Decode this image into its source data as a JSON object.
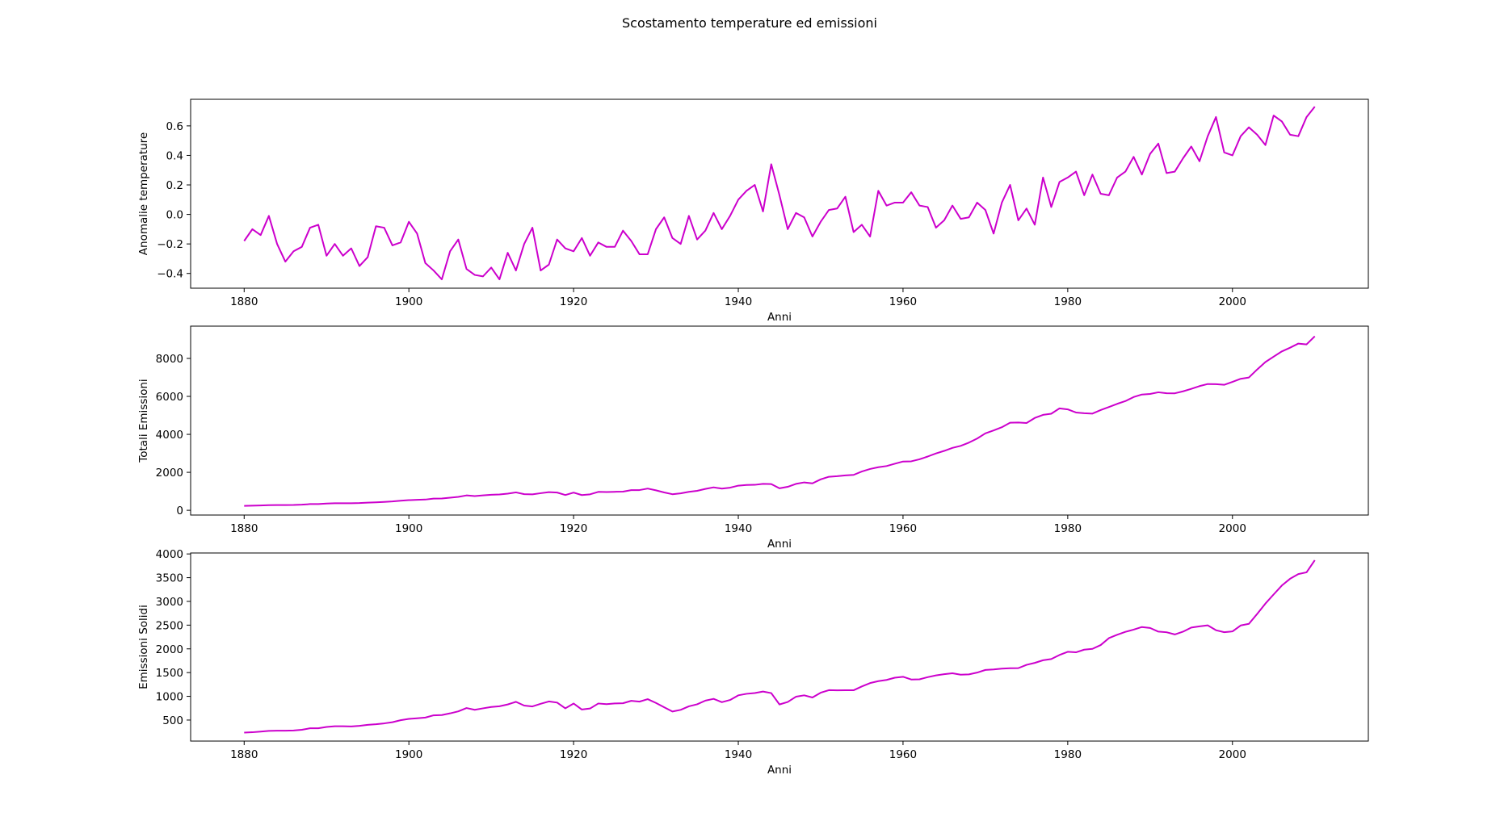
{
  "figure": {
    "title": "Scostamento temperature ed emissioni"
  },
  "style": {
    "line_color": "#cc00cc",
    "axes_color": "#000000",
    "background": "#ffffff"
  },
  "chart_data": [
    {
      "type": "line",
      "title": "",
      "xlabel": "Anni",
      "ylabel": "Anomalie temperature",
      "xlim": [
        1873.5,
        2016.5
      ],
      "ylim": [
        -0.5,
        0.78
      ],
      "xticks": [
        1880,
        1900,
        1920,
        1940,
        1960,
        1980,
        2000
      ],
      "yticks": [
        -0.4,
        -0.2,
        0.0,
        0.2,
        0.4,
        0.6
      ],
      "ytick_labels": [
        "−0.4",
        "−0.2",
        "0.0",
        "0.2",
        "0.4",
        "0.6"
      ],
      "grid": false,
      "series": [
        {
          "x_start": 1880,
          "x_step": 1,
          "values": [
            -0.18,
            -0.1,
            -0.14,
            -0.01,
            -0.2,
            -0.32,
            -0.25,
            -0.22,
            -0.09,
            -0.07,
            -0.28,
            -0.2,
            -0.28,
            -0.23,
            -0.35,
            -0.29,
            -0.08,
            -0.09,
            -0.21,
            -0.19,
            -0.05,
            -0.13,
            -0.33,
            -0.38,
            -0.44,
            -0.25,
            -0.17,
            -0.37,
            -0.41,
            -0.42,
            -0.36,
            -0.44,
            -0.26,
            -0.38,
            -0.2,
            -0.09,
            -0.38,
            -0.34,
            -0.17,
            -0.23,
            -0.25,
            -0.16,
            -0.28,
            -0.19,
            -0.22,
            -0.22,
            -0.11,
            -0.18,
            -0.27,
            -0.27,
            -0.1,
            -0.02,
            -0.16,
            -0.2,
            -0.01,
            -0.17,
            -0.11,
            0.01,
            -0.1,
            -0.01,
            0.1,
            0.16,
            0.2,
            0.02,
            0.34,
            0.13,
            -0.1,
            0.01,
            -0.02,
            -0.15,
            -0.05,
            0.03,
            0.04,
            0.12,
            -0.12,
            -0.07,
            -0.15,
            0.16,
            0.06,
            0.08,
            0.08,
            0.15,
            0.06,
            0.05,
            -0.09,
            -0.04,
            0.06,
            -0.03,
            -0.02,
            0.08,
            0.03,
            -0.13,
            0.08,
            0.2,
            -0.04,
            0.04,
            -0.07,
            0.25,
            0.05,
            0.22,
            0.25,
            0.29,
            0.13,
            0.27,
            0.14,
            0.13,
            0.25,
            0.29,
            0.39,
            0.27,
            0.41,
            0.48,
            0.28,
            0.29,
            0.38,
            0.46,
            0.36,
            0.53,
            0.66,
            0.42,
            0.4,
            0.53,
            0.59,
            0.54,
            0.47,
            0.67,
            0.63,
            0.54,
            0.53,
            0.66,
            0.73
          ]
        }
      ]
    },
    {
      "type": "line",
      "title": "",
      "xlabel": "Anni",
      "ylabel": "Totali Emissioni",
      "xlim": [
        1873.5,
        2016.5
      ],
      "ylim": [
        -250,
        9700
      ],
      "xticks": [
        1880,
        1900,
        1920,
        1940,
        1960,
        1980,
        2000
      ],
      "yticks": [
        0,
        2000,
        4000,
        6000,
        8000
      ],
      "ytick_labels": [
        "0",
        "2000",
        "4000",
        "6000",
        "8000"
      ],
      "grid": false,
      "series": [
        {
          "x_start": 1880,
          "x_step": 1,
          "values": [
            236,
            243,
            256,
            272,
            275,
            277,
            281,
            295,
            327,
            327,
            356,
            372,
            374,
            370,
            383,
            406,
            419,
            440,
            465,
            507,
            534,
            552,
            566,
            617,
            624,
            663,
            707,
            784,
            750,
            785,
            819,
            836,
            879,
            943,
            850,
            838,
            901,
            955,
            936,
            806,
            932,
            803,
            842,
            970,
            963,
            975,
            983,
            1062,
            1065,
            1145,
            1053,
            940,
            847,
            893,
            973,
            1027,
            1126,
            1209,
            1142,
            1192,
            1299,
            1334,
            1342,
            1392,
            1383,
            1160,
            1238,
            1392,
            1469,
            1419,
            1630,
            1767,
            1795,
            1841,
            1865,
            2042,
            2177,
            2270,
            2330,
            2454,
            2569,
            2580,
            2686,
            2833,
            2995,
            3130,
            3288,
            3393,
            3566,
            3780,
            4053,
            4208,
            4376,
            4614,
            4623,
            4596,
            4864,
            5026,
            5087,
            5369,
            5315,
            5152,
            5113,
            5094,
            5280,
            5439,
            5607,
            5752,
            5965,
            6097,
            6127,
            6216,
            6164,
            6162,
            6266,
            6398,
            6542,
            6651,
            6643,
            6610,
            6765,
            6927,
            6996,
            7416,
            7807,
            8093,
            8370,
            8566,
            8783,
            8740,
            9167
          ]
        }
      ]
    },
    {
      "type": "line",
      "title": "",
      "xlabel": "Anni",
      "ylabel": "Emissioni Solidi",
      "xlim": [
        1873.5,
        2016.5
      ],
      "ylim": [
        57,
        4020
      ],
      "xticks": [
        1880,
        1900,
        1920,
        1940,
        1960,
        1980,
        2000
      ],
      "yticks": [
        500,
        1000,
        1500,
        2000,
        2500,
        3000,
        3500,
        4000
      ],
      "ytick_labels": [
        "500",
        "1000",
        "1500",
        "2000",
        "2500",
        "3000",
        "3500",
        "4000"
      ],
      "grid": false,
      "series": [
        {
          "x_start": 1880,
          "x_step": 1,
          "values": [
            236,
            243,
            256,
            272,
            275,
            277,
            281,
            295,
            327,
            327,
            355,
            369,
            369,
            366,
            379,
            400,
            412,
            430,
            455,
            497,
            524,
            538,
            552,
            600,
            605,
            641,
            683,
            753,
            716,
            747,
            775,
            791,
            829,
            884,
            805,
            787,
            843,
            892,
            868,
            747,
            848,
            722,
            743,
            849,
            835,
            850,
            854,
            905,
            888,
            941,
            861,
            770,
            680,
            715,
            789,
            832,
            910,
            947,
            877,
            923,
            1021,
            1053,
            1069,
            1101,
            1068,
            829,
            881,
            992,
            1021,
            976,
            1076,
            1130,
            1126,
            1129,
            1128,
            1208,
            1279,
            1320,
            1345,
            1392,
            1412,
            1355,
            1358,
            1404,
            1441,
            1466,
            1485,
            1456,
            1462,
            1500,
            1556,
            1566,
            1584,
            1592,
            1594,
            1663,
            1705,
            1760,
            1786,
            1871,
            1938,
            1927,
            1983,
            2000,
            2080,
            2226,
            2297,
            2358,
            2405,
            2460,
            2440,
            2363,
            2350,
            2304,
            2362,
            2449,
            2475,
            2495,
            2393,
            2351,
            2368,
            2493,
            2528,
            2736,
            2953,
            3146,
            3335,
            3477,
            3575,
            3613,
            3868
          ]
        }
      ]
    }
  ]
}
